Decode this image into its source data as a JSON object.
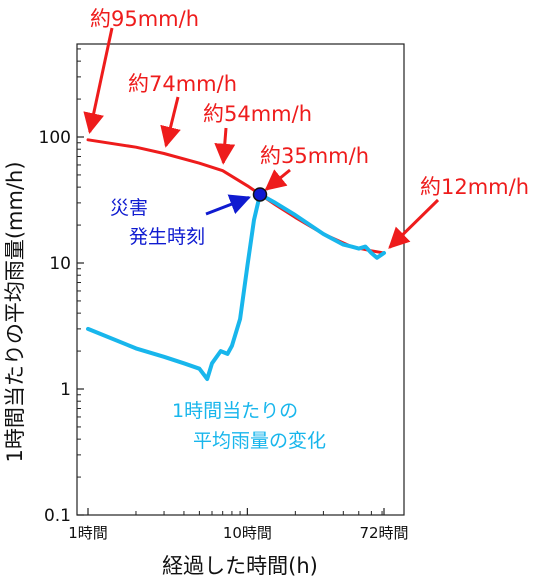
{
  "chart_data": {
    "type": "line",
    "xscale": "log",
    "yscale": "log",
    "xlim": [
      1,
      72
    ],
    "ylim": [
      0.1,
      1000
    ],
    "xlabel": "経過した時間(h)",
    "ylabel": "1時間当たりの平均雨量(mm/h)",
    "xticks": [
      {
        "value": 1,
        "label": "1時間"
      },
      {
        "value": 10,
        "label": "10時間"
      },
      {
        "value": 72,
        "label": "72時間"
      }
    ],
    "yticks": [
      {
        "value": 0.1,
        "label": "0.1"
      },
      {
        "value": 1,
        "label": "1"
      },
      {
        "value": 10,
        "label": "10"
      },
      {
        "value": 100,
        "label": "100"
      }
    ],
    "colors": {
      "red": "#ee1c1c",
      "blue": "#18b6ec",
      "dark_blue": "#0f1bd0"
    },
    "series": [
      {
        "color": "#ee1c1c",
        "x": [
          1,
          2,
          3,
          5,
          7,
          10,
          12,
          15,
          20,
          30,
          45,
          60,
          72
        ],
        "y": [
          95,
          83,
          74,
          62,
          54,
          41,
          35,
          29,
          23,
          17,
          13.5,
          12.5,
          12
        ]
      },
      {
        "color": "#18b6ec",
        "x": [
          1,
          2,
          3,
          4,
          5,
          5.6,
          6,
          6.8,
          7.5,
          8,
          9,
          10,
          11,
          12,
          15,
          20,
          30,
          40,
          45,
          50,
          55,
          60,
          65,
          72
        ],
        "y": [
          3.0,
          2.1,
          1.8,
          1.6,
          1.45,
          1.2,
          1.6,
          2.0,
          1.9,
          2.2,
          3.6,
          9.5,
          22,
          35,
          30,
          24,
          17,
          14,
          13.5,
          13,
          13.5,
          12,
          11,
          12
        ]
      }
    ],
    "annotations": [
      {
        "text": "約95mm/h",
        "x": 1,
        "y": 95,
        "color": "#ee1c1c"
      },
      {
        "text": "約74mm/h",
        "x": 3,
        "y": 74,
        "color": "#ee1c1c"
      },
      {
        "text": "約54mm/h",
        "x": 7,
        "y": 54,
        "color": "#ee1c1c"
      },
      {
        "text": "約35mm/h",
        "x": 12,
        "y": 35,
        "color": "#ee1c1c"
      },
      {
        "text": "約12mm/h",
        "x": 72,
        "y": 12,
        "color": "#ee1c1c"
      }
    ],
    "event": {
      "x": 12,
      "y": 35,
      "label_lines": [
        "災害",
        "発生時刻"
      ],
      "color": "#0f1bd0"
    },
    "series_label_lines": [
      "1時間当たりの",
      "平均雨量の変化"
    ]
  }
}
